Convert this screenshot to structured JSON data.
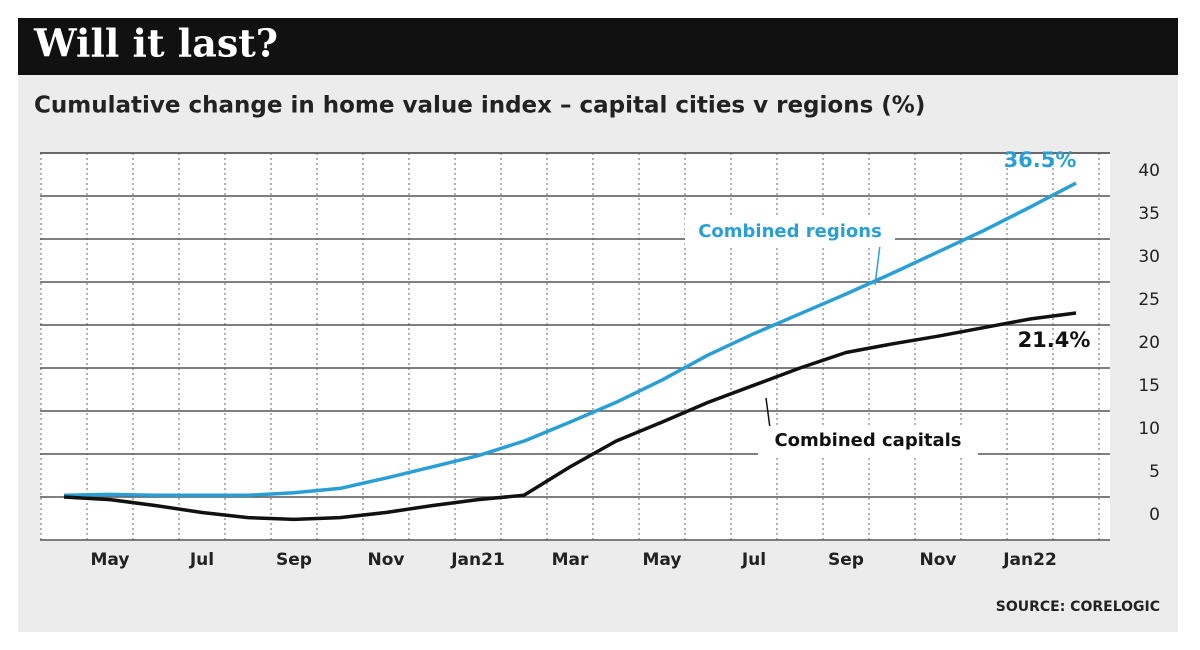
{
  "chart_data": {
    "type": "line",
    "title": "Will it last?",
    "subtitle": "Cumulative change in home value index – capital cities v regions (%)",
    "source": "SOURCE: CORELOGIC",
    "categories": [
      null,
      "May",
      null,
      "Jul",
      null,
      "Sep",
      null,
      "Nov",
      null,
      "Jan21",
      null,
      "Mar",
      null,
      "May",
      null,
      "Jul",
      null,
      "Sep",
      null,
      "Nov",
      null,
      "Jan22",
      null
    ],
    "series": [
      {
        "name": "Combined regions",
        "color": "#2a9fd6",
        "values": [
          0.2,
          0.3,
          0.2,
          0.2,
          0.2,
          0.5,
          1.0,
          2.2,
          3.5,
          4.8,
          6.5,
          8.7,
          11,
          13.6,
          16.5,
          19,
          21.3,
          23.6,
          26,
          28.5,
          31,
          33.7,
          36.5
        ],
        "value_labels": [
          null,
          null,
          null,
          null,
          null,
          null,
          null,
          null,
          null,
          null,
          null,
          null,
          null,
          null,
          null,
          null,
          null,
          null,
          null,
          null,
          null,
          null,
          "36.5%"
        ]
      },
      {
        "name": "Combined capitals",
        "color": "#111111",
        "values": [
          0,
          -0.3,
          -1,
          -1.8,
          -2.4,
          -2.6,
          -2.4,
          -1.8,
          -1,
          -0.3,
          0.2,
          3.5,
          6.5,
          8.7,
          11,
          13,
          15,
          16.8,
          17.8,
          18.7,
          19.7,
          20.7,
          21.4
        ],
        "value_labels": [
          null,
          null,
          null,
          null,
          null,
          null,
          null,
          null,
          null,
          null,
          null,
          null,
          null,
          null,
          null,
          null,
          null,
          null,
          null,
          null,
          null,
          null,
          "21.4%"
        ]
      }
    ],
    "ylim": [
      -5,
      40
    ],
    "yticks": [
      0,
      5,
      10,
      15,
      20,
      25,
      30,
      35,
      40
    ],
    "grid": true
  }
}
